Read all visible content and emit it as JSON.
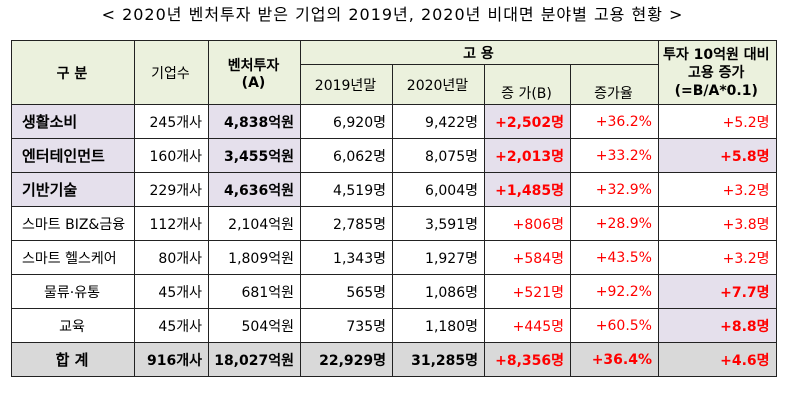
{
  "title": "< 2020년 벤처투자 받은 기업의 2019년, 2020년 비대면 분야별 고용 현황 >",
  "headers": {
    "category": "구  분",
    "companies": "기업수",
    "investment": "벤처투자",
    "investment_unit": "(A)",
    "employment": "고  용",
    "end2019": "2019년말",
    "end2020": "2020년말",
    "increase": "증 가(B)",
    "rate": "증가율",
    "per_invest_1": "투자 10억원 대비",
    "per_invest_2": "고용 증가",
    "per_invest_3": "(=B/A*0.1)"
  },
  "rows": [
    {
      "category": "생활소비",
      "companies": "245개사",
      "investment": "4,838억원",
      "e2019": "6,920명",
      "e2020": "9,422명",
      "increase": "+2,502명",
      "rate": "+36.2%",
      "per": "+5.2명"
    },
    {
      "category": "엔터테인먼트",
      "companies": "160개사",
      "investment": "3,455억원",
      "e2019": "6,062명",
      "e2020": "8,075명",
      "increase": "+2,013명",
      "rate": "+33.2%",
      "per": "+5.8명"
    },
    {
      "category": "기반기술",
      "companies": "229개사",
      "investment": "4,636억원",
      "e2019": "4,519명",
      "e2020": "6,004명",
      "increase": "+1,485명",
      "rate": "+32.9%",
      "per": "+3.2명"
    },
    {
      "category": "스마트 BIZ&금융",
      "companies": "112개사",
      "investment": "2,104억원",
      "e2019": "2,785명",
      "e2020": "3,591명",
      "increase": "+806명",
      "rate": "+28.9%",
      "per": "+3.8명"
    },
    {
      "category": "스마트 헬스케어",
      "companies": "80개사",
      "investment": "1,809억원",
      "e2019": "1,343명",
      "e2020": "1,927명",
      "increase": "+584명",
      "rate": "+43.5%",
      "per": "+3.2명"
    },
    {
      "category": "물류·유통",
      "companies": "45개사",
      "investment": "681억원",
      "e2019": "565명",
      "e2020": "1,086명",
      "increase": "+521명",
      "rate": "+92.2%",
      "per": "+7.7명"
    },
    {
      "category": "교육",
      "companies": "45개사",
      "investment": "504억원",
      "e2019": "735명",
      "e2020": "1,180명",
      "increase": "+445명",
      "rate": "+60.5%",
      "per": "+8.8명"
    }
  ],
  "total": {
    "category": "합  계",
    "companies": "916개사",
    "investment": "18,027억원",
    "e2019": "22,929명",
    "e2020": "31,285명",
    "increase": "+8,356명",
    "rate": "+36.4%",
    "per": "+4.6명"
  },
  "colors": {
    "header_bg": "#ebf1dd",
    "highlight": "#e5e0ec",
    "total_bg": "#d9d9d9",
    "accent": "#ff0000"
  }
}
